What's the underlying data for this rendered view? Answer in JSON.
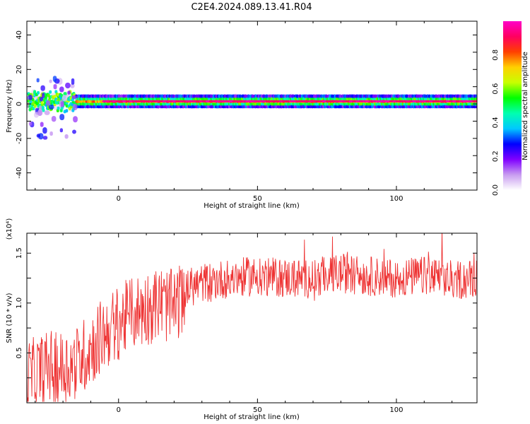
{
  "title": "C2E4.2024.089.13.41.R04",
  "chart_data": [
    {
      "type": "heatmap",
      "xlabel": "Height of straight line (km)",
      "ylabel": "Frequency (Hz)",
      "xlim": [
        -33,
        129
      ],
      "ylim": [
        -50,
        48
      ],
      "xticks": [
        "0",
        "50",
        "100"
      ],
      "yticks": [
        "40",
        "20",
        "0",
        "-20",
        "-40"
      ],
      "colorbar": {
        "label": "Normalized spectral amplitude",
        "range": [
          0,
          1
        ],
        "ticks": [
          "0.0",
          "0.2",
          "0.4",
          "0.6",
          "0.8"
        ],
        "colors": [
          "#ffffff",
          "#c89cf0",
          "#8000ff",
          "#0000ff",
          "#00c8ff",
          "#00ffb0",
          "#00ff00",
          "#c8ff00",
          "#ffd000",
          "#ff4000",
          "#ff0060",
          "#ff00c8"
        ]
      },
      "band_center_hz": 1.5,
      "band_halfwidth_hz": 3
    },
    {
      "type": "line",
      "xlabel": "Height of straight line (km)",
      "ylabel": "SNR (10 * v/v)",
      "multiplier": "(x10⁴)",
      "xlim": [
        -33,
        129
      ],
      "ylim": [
        0,
        1.7
      ],
      "xticks": [
        "0",
        "50",
        "100"
      ],
      "yticks": [
        "0.5",
        "1.0",
        "1.5"
      ],
      "color": "#ee3333",
      "trend": {
        "x": [
          -33,
          -25,
          -20,
          -15,
          -10,
          -5,
          0,
          5,
          10,
          15,
          20,
          25,
          30,
          40,
          50,
          60,
          70,
          80,
          90,
          100,
          110,
          120,
          129
        ],
        "y": [
          0.25,
          0.35,
          0.35,
          0.4,
          0.55,
          0.7,
          0.8,
          0.9,
          0.95,
          1.0,
          0.95,
          1.15,
          1.2,
          1.25,
          1.27,
          1.25,
          1.25,
          1.3,
          1.27,
          1.25,
          1.27,
          1.23,
          1.25
        ]
      }
    }
  ]
}
